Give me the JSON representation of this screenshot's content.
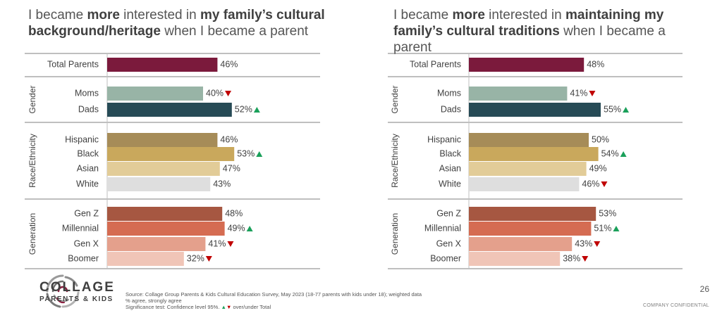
{
  "charts": [
    {
      "title_parts": [
        "I became ",
        "more",
        " interested in ",
        "my family’s cultural background/heritage",
        " when I became a parent"
      ]
    },
    {
      "title_parts": [
        "I became ",
        "more",
        " interested in ",
        "maintaining my family’s cultural traditions",
        " when I became a parent"
      ]
    }
  ],
  "chart_data": [
    {
      "type": "bar",
      "orientation": "horizontal",
      "groups": [
        {
          "label": "",
          "rows": [
            {
              "category": "Total Parents",
              "value": 46,
              "label": "46%",
              "sig": null,
              "color": "#7b1a3c"
            }
          ]
        },
        {
          "label": "Gender",
          "rows": [
            {
              "category": "Moms",
              "value": 40,
              "label": "40%",
              "sig": "down",
              "color": "#98b4a6"
            },
            {
              "category": "Dads",
              "value": 52,
              "label": "52%",
              "sig": "up",
              "color": "#274b56"
            }
          ]
        },
        {
          "label": "Race/Ethnicity",
          "rows": [
            {
              "category": "Hispanic",
              "value": 46,
              "label": "46%",
              "sig": null,
              "color": "#a68c58"
            },
            {
              "category": "Black",
              "value": 53,
              "label": "53%",
              "sig": "up",
              "color": "#c9a85c"
            },
            {
              "category": "Asian",
              "value": 47,
              "label": "47%",
              "sig": null,
              "color": "#e2cc98"
            },
            {
              "category": "White",
              "value": 43,
              "label": "43%",
              "sig": null,
              "color": "#dedede"
            }
          ]
        },
        {
          "label": "Generation",
          "rows": [
            {
              "category": "Gen Z",
              "value": 48,
              "label": "48%",
              "sig": null,
              "color": "#a65741"
            },
            {
              "category": "Millennial",
              "value": 49,
              "label": "49%",
              "sig": "up",
              "color": "#d56c52"
            },
            {
              "category": "Gen X",
              "value": 41,
              "label": "41%",
              "sig": "down",
              "color": "#e4a08c"
            },
            {
              "category": "Boomer",
              "value": 32,
              "label": "32%",
              "sig": "down",
              "color": "#f0c5b7"
            }
          ]
        }
      ]
    },
    {
      "type": "bar",
      "orientation": "horizontal",
      "groups": [
        {
          "label": "",
          "rows": [
            {
              "category": "Total Parents",
              "value": 48,
              "label": "48%",
              "sig": null,
              "color": "#7b1a3c"
            }
          ]
        },
        {
          "label": "Gender",
          "rows": [
            {
              "category": "Moms",
              "value": 41,
              "label": "41%",
              "sig": "down",
              "color": "#98b4a6"
            },
            {
              "category": "Dads",
              "value": 55,
              "label": "55%",
              "sig": "up",
              "color": "#274b56"
            }
          ]
        },
        {
          "label": "Race/Ethnicity",
          "rows": [
            {
              "category": "Hispanic",
              "value": 50,
              "label": "50%",
              "sig": null,
              "color": "#a68c58"
            },
            {
              "category": "Black",
              "value": 54,
              "label": "54%",
              "sig": "up",
              "color": "#c9a85c"
            },
            {
              "category": "Asian",
              "value": 49,
              "label": "49%",
              "sig": null,
              "color": "#e2cc98"
            },
            {
              "category": "White",
              "value": 46,
              "label": "46%",
              "sig": "down",
              "color": "#dedede"
            }
          ]
        },
        {
          "label": "Generation",
          "rows": [
            {
              "category": "Gen Z",
              "value": 53,
              "label": "53%",
              "sig": null,
              "color": "#a65741"
            },
            {
              "category": "Millennial",
              "value": 51,
              "label": "51%",
              "sig": "up",
              "color": "#d56c52"
            },
            {
              "category": "Gen X",
              "value": 43,
              "label": "43%",
              "sig": "down",
              "color": "#e4a08c"
            },
            {
              "category": "Boomer",
              "value": 38,
              "label": "38%",
              "sig": "down",
              "color": "#f0c5b7"
            }
          ]
        }
      ]
    }
  ],
  "logo": {
    "name": "COLLAGE",
    "sub": "PARENTS & KIDS"
  },
  "footnotes": {
    "source": "Source: Collage Group Parents & Kids Cultural Education Survey, May 2023 (18-77 parents with kids under 18); weighted data",
    "metric": "% agree, strongly agree",
    "sig_prefix": "Significance test: Confidence level 95%. ",
    "sig_up": "▲",
    "sig_down": "▼",
    "sig_suffix": " over/under Total"
  },
  "page_number": "26",
  "confidential": "COMPANY CONFIDENTIAL",
  "colors": {
    "sig_up": "#1aa05a",
    "sig_down": "#c00000",
    "rule": "#7f7f7f"
  }
}
